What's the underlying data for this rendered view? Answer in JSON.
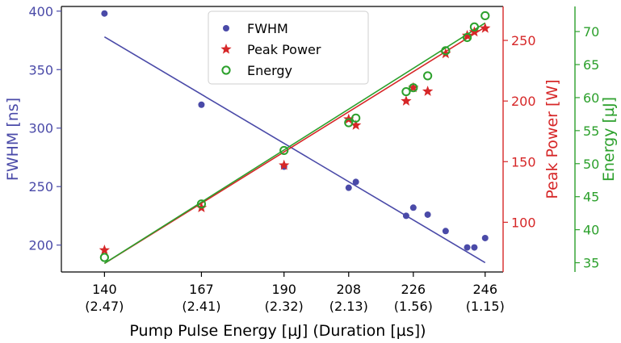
{
  "chart_data": {
    "type": "scatter",
    "title": "",
    "xlabel": "Pump Pulse Energy [µJ] (Duration [µs])",
    "x_ticks": [
      {
        "value": 140,
        "label": "140",
        "sublabel": "(2.47)"
      },
      {
        "value": 167,
        "label": "167",
        "sublabel": "(2.41)"
      },
      {
        "value": 190,
        "label": "190",
        "sublabel": "(2.32)"
      },
      {
        "value": 208,
        "label": "208",
        "sublabel": "(2.13)"
      },
      {
        "value": 226,
        "label": "226",
        "sublabel": "(1.56)"
      },
      {
        "value": 246,
        "label": "246",
        "sublabel": "(1.15)"
      }
    ],
    "xlim": [
      128,
      251
    ],
    "axes": [
      {
        "id": "fwhm",
        "label": "FWHM [ns]",
        "color": "#4a4aa8",
        "side": "left",
        "ylim": [
          177,
          404
        ],
        "ticks": [
          200,
          250,
          300,
          350,
          400
        ]
      },
      {
        "id": "power",
        "label": "Peak Power [W]",
        "color": "#d62728",
        "side": "right",
        "ylim": [
          59,
          278
        ],
        "ticks": [
          100,
          150,
          200,
          250
        ]
      },
      {
        "id": "energy",
        "label": "Energy [µJ]",
        "color": "#2ca02c",
        "side": "right-outer",
        "ylim": [
          33.6,
          73.8
        ],
        "ticks": [
          35,
          40,
          45,
          50,
          55,
          60,
          65,
          70
        ]
      }
    ],
    "series": [
      {
        "name": "FWHM",
        "axis": "fwhm",
        "marker": "circle",
        "color": "#4a4aa8",
        "points": [
          [
            140,
            398
          ],
          [
            167,
            320
          ],
          [
            190,
            267
          ],
          [
            208,
            249
          ],
          [
            210,
            254
          ],
          [
            224,
            225
          ],
          [
            226,
            232
          ],
          [
            230,
            226
          ],
          [
            235,
            212
          ],
          [
            241,
            198
          ],
          [
            243,
            198
          ],
          [
            246,
            206
          ]
        ],
        "fit": [
          [
            140,
            378
          ],
          [
            246,
            185
          ]
        ]
      },
      {
        "name": "Peak Power",
        "axis": "power",
        "marker": "star",
        "color": "#d62728",
        "points": [
          [
            140,
            77
          ],
          [
            167,
            112
          ],
          [
            190,
            147
          ],
          [
            208,
            185
          ],
          [
            210,
            180
          ],
          [
            224,
            200
          ],
          [
            226,
            211
          ],
          [
            230,
            208
          ],
          [
            235,
            239
          ],
          [
            241,
            254
          ],
          [
            243,
            257
          ],
          [
            246,
            260
          ]
        ],
        "fit": [
          [
            140,
            66
          ],
          [
            246,
            261
          ]
        ]
      },
      {
        "name": "Energy",
        "axis": "energy",
        "marker": "open-circle",
        "color": "#2ca02c",
        "points": [
          [
            140,
            35.8
          ],
          [
            167,
            43.9
          ],
          [
            190,
            52.0
          ],
          [
            208,
            56.2
          ],
          [
            210,
            56.9
          ],
          [
            224,
            60.9
          ],
          [
            226,
            61.5
          ],
          [
            230,
            63.3
          ],
          [
            235,
            67.1
          ],
          [
            241,
            69.1
          ],
          [
            243,
            70.7
          ],
          [
            246,
            72.4
          ]
        ],
        "fit": [
          [
            140,
            34.9
          ],
          [
            246,
            71.3
          ]
        ]
      }
    ],
    "legend": {
      "placement": "top-center",
      "entries": [
        "FWHM",
        "Peak Power",
        "Energy"
      ]
    },
    "grid": false
  }
}
